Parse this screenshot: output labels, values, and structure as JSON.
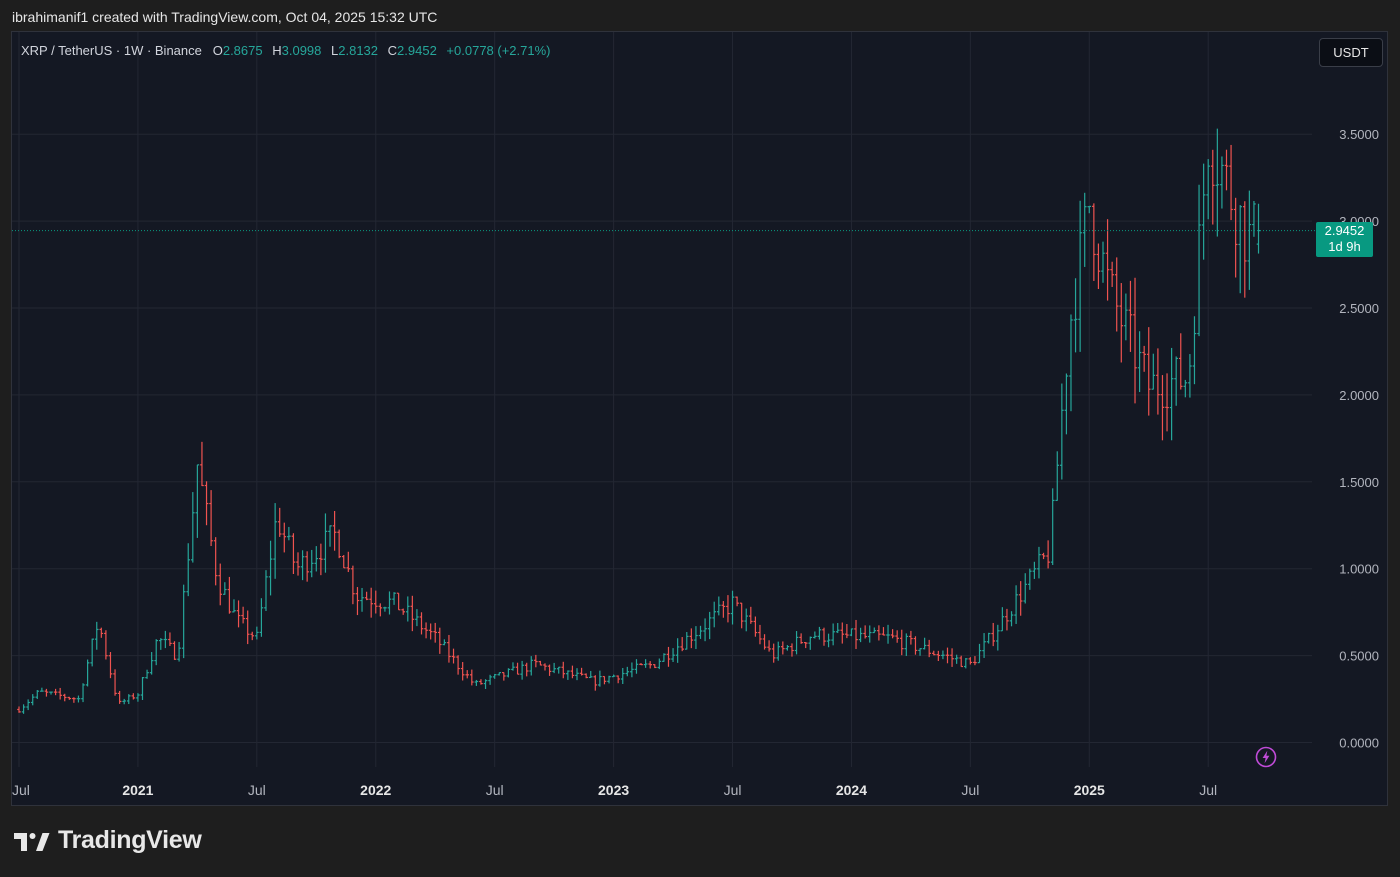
{
  "caption": "ibrahimanif1 created with TradingView.com, Oct 04, 2025 15:32 UTC",
  "legend": {
    "symbol": "XRP / TetherUS · 1W · Binance",
    "o_label": "O",
    "o_value": "2.8675",
    "h_label": "H",
    "h_value": "3.0998",
    "l_label": "L",
    "l_value": "2.8132",
    "c_label": "C",
    "c_value": "2.9452",
    "change": "+0.0778 (+2.71%)"
  },
  "currency": "USDT",
  "last_price": {
    "value": "2.9452",
    "countdown": "1d 9h"
  },
  "brand": "TradingView",
  "colors": {
    "background": "#141823",
    "up": "#26a69a",
    "down": "#ef5350",
    "grid": "#232733",
    "axis_text": "#b2b5be",
    "accent": "#089981"
  },
  "icons": {
    "lightning": "lightning-icon",
    "logo": "tradingview-logo-icon"
  },
  "chart_data": {
    "type": "ohlc",
    "interval": "1W",
    "y_ticks": [
      "3.5000",
      "3.0000",
      "2.5000",
      "2.0000",
      "1.5000",
      "1.0000",
      "0.5000",
      "0.0000"
    ],
    "x_ticks": [
      "Jul",
      "2021",
      "Jul",
      "2022",
      "Jul",
      "2023",
      "Jul",
      "2024",
      "Jul",
      "2025",
      "Jul"
    ],
    "ylim": [
      -0.2,
      3.8
    ],
    "grid": true,
    "anchors": [
      {
        "date": "2020-07",
        "close": 0.19
      },
      {
        "date": "2020-08",
        "close": 0.29
      },
      {
        "date": "2020-10",
        "close": 0.25
      },
      {
        "date": "2020-11",
        "close": 0.7
      },
      {
        "date": "2020-12",
        "close": 0.22
      },
      {
        "date": "2021-01",
        "close": 0.28
      },
      {
        "date": "2021-02",
        "close": 0.6
      },
      {
        "date": "2021-03",
        "close": 0.5
      },
      {
        "date": "2021-04",
        "close": 1.6
      },
      {
        "date": "2021-05",
        "close": 0.95
      },
      {
        "date": "2021-06",
        "close": 0.7
      },
      {
        "date": "2021-07",
        "close": 0.6
      },
      {
        "date": "2021-08",
        "close": 1.3
      },
      {
        "date": "2021-09",
        "close": 1.0
      },
      {
        "date": "2021-10",
        "close": 1.1
      },
      {
        "date": "2021-11",
        "close": 1.2
      },
      {
        "date": "2021-12",
        "close": 0.85
      },
      {
        "date": "2022-02",
        "close": 0.8
      },
      {
        "date": "2022-04",
        "close": 0.6
      },
      {
        "date": "2022-06",
        "close": 0.33
      },
      {
        "date": "2022-09",
        "close": 0.45
      },
      {
        "date": "2022-12",
        "close": 0.35
      },
      {
        "date": "2023-03",
        "close": 0.45
      },
      {
        "date": "2023-07",
        "close": 0.8
      },
      {
        "date": "2023-09",
        "close": 0.5
      },
      {
        "date": "2023-11",
        "close": 0.62
      },
      {
        "date": "2024-03",
        "close": 0.6
      },
      {
        "date": "2024-07",
        "close": 0.45
      },
      {
        "date": "2024-08",
        "close": 0.6
      },
      {
        "date": "2024-11",
        "close": 1.1
      },
      {
        "date": "2024-12",
        "close": 2.4
      },
      {
        "date": "2025-01",
        "close": 3.1
      },
      {
        "date": "2025-02",
        "close": 2.6
      },
      {
        "date": "2025-04",
        "close": 2.05
      },
      {
        "date": "2025-06",
        "close": 2.1
      },
      {
        "date": "2025-07",
        "close": 3.5
      },
      {
        "date": "2025-09",
        "close": 2.9
      },
      {
        "date": "2025-10",
        "close": 2.9452
      }
    ]
  }
}
